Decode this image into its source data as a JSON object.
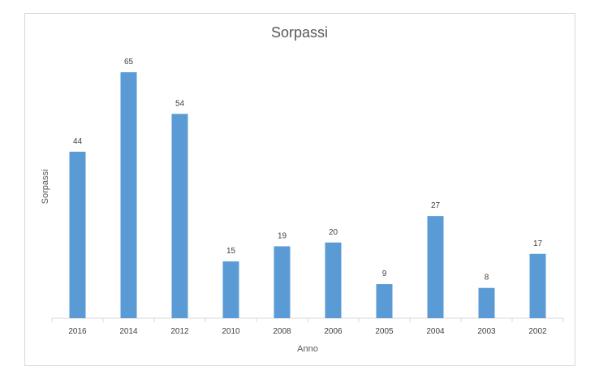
{
  "chart_data": {
    "type": "bar",
    "title": "Sorpassi",
    "xlabel": "Anno",
    "ylabel": "Sorpassi",
    "categories": [
      "2016",
      "2014",
      "2012",
      "2010",
      "2008",
      "2006",
      "2005",
      "2004",
      "2003",
      "2002"
    ],
    "values": [
      44,
      65,
      54,
      15,
      19,
      20,
      9,
      27,
      8,
      17
    ],
    "ylim": [
      0,
      70
    ],
    "grid": false,
    "data_labels": true,
    "legend": "none",
    "bar_color": "#5b9bd5"
  }
}
